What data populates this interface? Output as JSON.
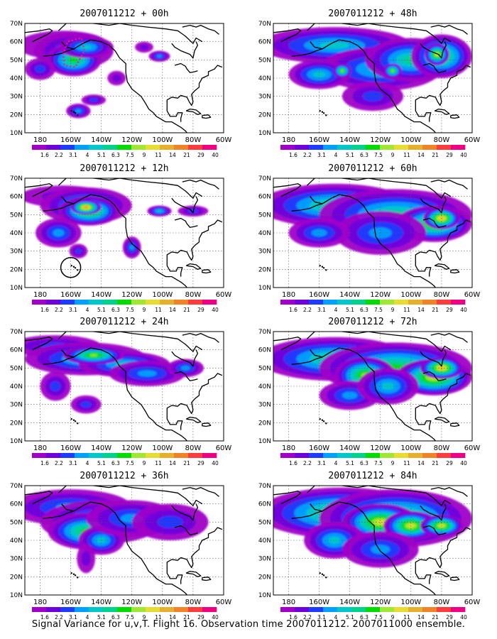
{
  "figure": {
    "caption": "Signal Variance for u,v,T. Flight 16. Observation time 2007011212. 2007011000 ensemble."
  },
  "axes": {
    "lon_labels": [
      "180",
      "160W",
      "140W",
      "120W",
      "100W",
      "80W",
      "60W"
    ],
    "lat_labels": [
      "10N",
      "20N",
      "30N",
      "40N",
      "50N",
      "60N",
      "70N"
    ],
    "lon_range": [
      -190,
      -60
    ],
    "lat_range": [
      10,
      70
    ],
    "grid": true,
    "grid_style": "dotted"
  },
  "colorbar": {
    "labels": [
      "1.6",
      "2.2",
      "3.1",
      "4",
      "5.1",
      "6.3",
      "7.5",
      "9",
      "11",
      "14",
      "21",
      "29",
      "40"
    ],
    "colors": [
      "#a000c8",
      "#6e00dc",
      "#1e3cff",
      "#00a0ff",
      "#00c8c8",
      "#00d28c",
      "#00dc00",
      "#a0e632",
      "#e6dc32",
      "#e6af2d",
      "#f08228",
      "#fa3c3c",
      "#f00082"
    ]
  },
  "panels": [
    {
      "title": "2007011212 + 00h"
    },
    {
      "title": "2007011212 + 12h"
    },
    {
      "title": "2007011212 + 24h"
    },
    {
      "title": "2007011212 + 36h"
    },
    {
      "title": "2007011212 + 48h"
    },
    {
      "title": "2007011212 + 60h"
    },
    {
      "title": "2007011212 + 72h"
    },
    {
      "title": "2007011212 + 84h"
    }
  ]
}
